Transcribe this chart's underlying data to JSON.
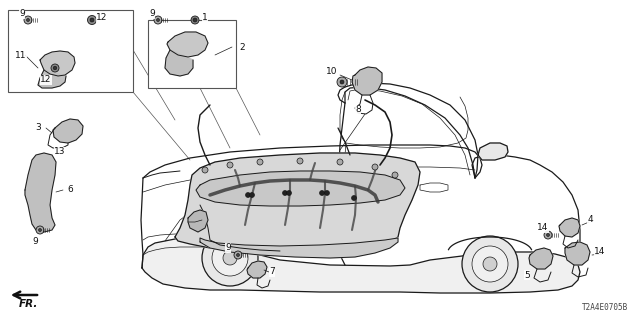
{
  "bg_color": "#ffffff",
  "line_color": "#1a1a1a",
  "diagram_code": "T2A4E0705B",
  "lw_car": 0.9,
  "lw_detail": 0.7,
  "lw_thin": 0.5
}
